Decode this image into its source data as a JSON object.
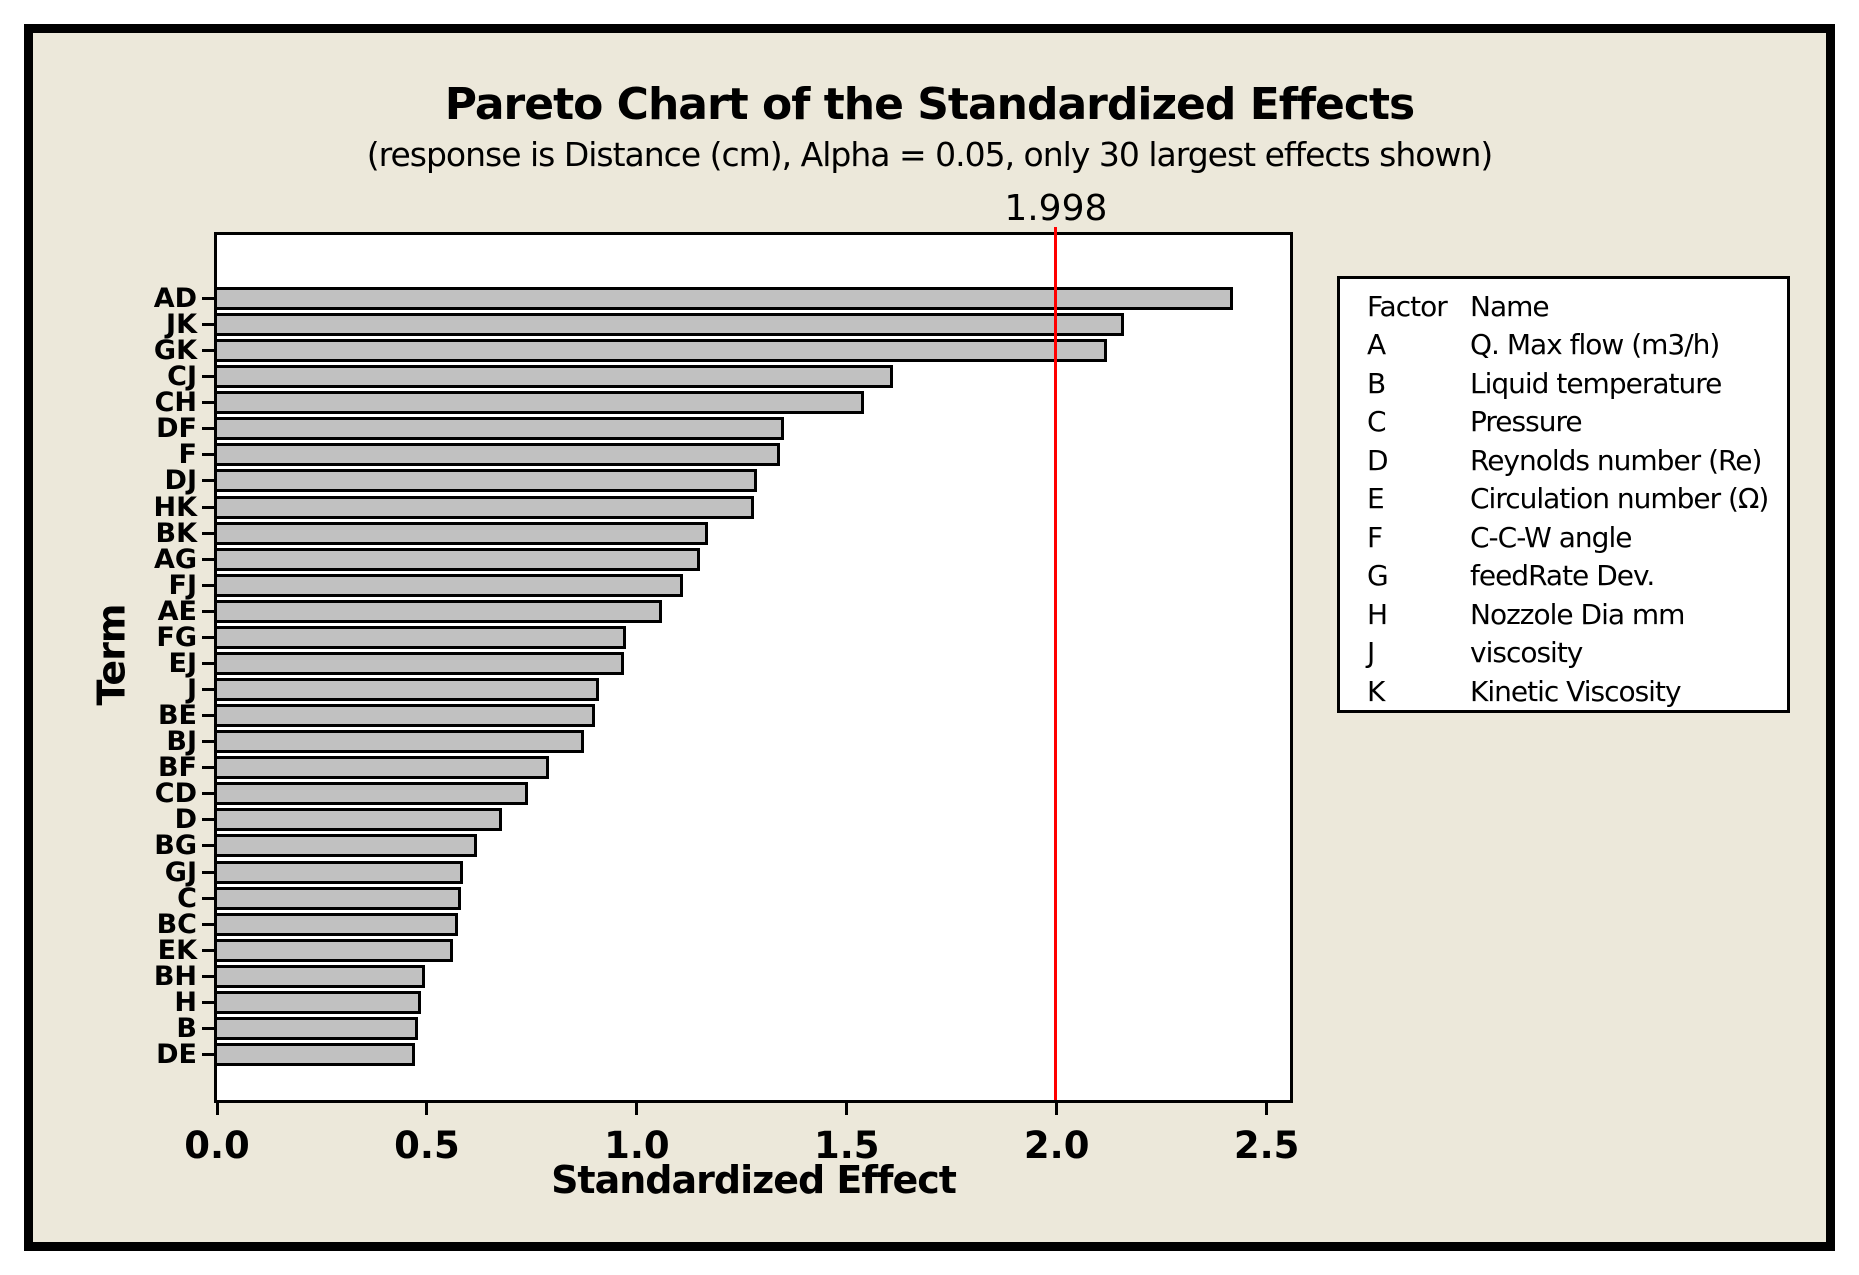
{
  "chart_data": {
    "type": "bar",
    "orientation": "horizontal",
    "title": "Pareto Chart of the Standardized Effects",
    "subtitle": "(response is Distance (cm), Alpha = 0.05, only 30 largest effects shown)",
    "xlabel": "Standardized Effect",
    "ylabel": "Term",
    "xlim": [
      0,
      2.57
    ],
    "xticks": [
      "0.0",
      "0.5",
      "1.0",
      "1.5",
      "2.0",
      "2.5"
    ],
    "grid": false,
    "legend_position": "right",
    "bar_fill_color": "#c1c1c1",
    "bar_border_color": "#000000",
    "plot_background": "#ffffff",
    "panel_background": "#ece8da",
    "reference_line": {
      "value": 1.998,
      "label": "1.998",
      "color": "#ff0000"
    },
    "categories": [
      "AD",
      "JK",
      "GK",
      "CJ",
      "CH",
      "DF",
      "F",
      "DJ",
      "HK",
      "BK",
      "AG",
      "FJ",
      "AE",
      "FG",
      "EJ",
      "J",
      "BE",
      "BJ",
      "BF",
      "CD",
      "D",
      "BG",
      "GJ",
      "C",
      "BC",
      "EK",
      "BH",
      "H",
      "B",
      "DE"
    ],
    "values": [
      2.42,
      2.16,
      2.12,
      1.61,
      1.54,
      1.35,
      1.34,
      1.285,
      1.28,
      1.17,
      1.15,
      1.11,
      1.06,
      0.975,
      0.97,
      0.91,
      0.9,
      0.875,
      0.79,
      0.74,
      0.68,
      0.62,
      0.585,
      0.58,
      0.573,
      0.562,
      0.495,
      0.487,
      0.479,
      0.471
    ]
  },
  "legend": {
    "header": {
      "factor": "Factor",
      "name": "Name"
    },
    "rows": [
      {
        "factor": "A",
        "name": "Q. Max flow (m3/h)"
      },
      {
        "factor": "B",
        "name": "Liquid temperature"
      },
      {
        "factor": "C",
        "name": "Pressure"
      },
      {
        "factor": "D",
        "name": "Reynolds number (Re)"
      },
      {
        "factor": "E",
        "name": "Circulation number (Ω)"
      },
      {
        "factor": "F",
        "name": "C-C-W angle"
      },
      {
        "factor": "G",
        "name": "feedRate Dev."
      },
      {
        "factor": "H",
        "name": "Nozzole Dia mm"
      },
      {
        "factor": "J",
        "name": "viscosity"
      },
      {
        "factor": "K",
        "name": "Kinetic Viscosity"
      }
    ]
  }
}
